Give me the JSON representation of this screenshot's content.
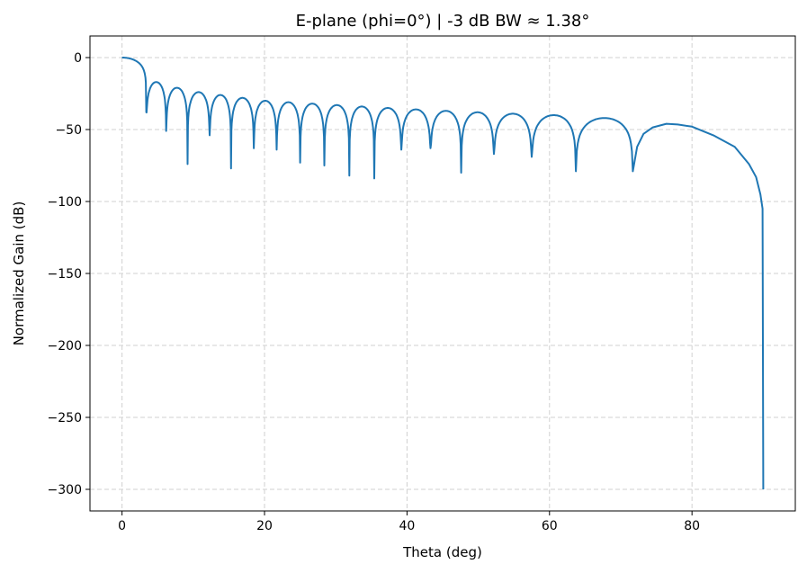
{
  "chart_data": {
    "type": "line",
    "title": "E-plane (phi=0°)  |  -3 dB BW ≈ 1.38°",
    "xlabel": "Theta (deg)",
    "ylabel": "Normalized Gain (dB)",
    "xlim": [
      -4.5,
      94.5
    ],
    "ylim": [
      -315,
      15
    ],
    "xticks": [
      0,
      20,
      40,
      60,
      80
    ],
    "yticks": [
      0,
      -50,
      -100,
      -150,
      -200,
      -250,
      -300
    ],
    "xtick_labels": [
      "0",
      "20",
      "40",
      "60",
      "80"
    ],
    "ytick_labels": [
      "0",
      "−50",
      "−100",
      "−150",
      "−200",
      "−250",
      "−300"
    ],
    "grid": true,
    "line_color": "#1f77b4",
    "main_lobe": {
      "peak": [
        0,
        0
      ]
    },
    "nulls": [
      [
        3.4,
        -38
      ],
      [
        6.2,
        -51
      ],
      [
        9.2,
        -74
      ],
      [
        12.3,
        -54
      ],
      [
        15.3,
        -77
      ],
      [
        18.5,
        -63
      ],
      [
        21.7,
        -64
      ],
      [
        25.0,
        -73
      ],
      [
        28.4,
        -75
      ],
      [
        31.9,
        -82
      ],
      [
        35.4,
        -84
      ],
      [
        39.2,
        -64
      ],
      [
        43.3,
        -63
      ],
      [
        47.6,
        -80
      ],
      [
        52.2,
        -67
      ],
      [
        57.5,
        -69
      ],
      [
        63.7,
        -79
      ],
      [
        71.7,
        -79
      ]
    ],
    "sidelobe_peaks": [
      [
        4.7,
        -17
      ],
      [
        7.6,
        -21
      ],
      [
        10.7,
        -24
      ],
      [
        13.8,
        -26
      ],
      [
        16.9,
        -28
      ],
      [
        20.1,
        -30
      ],
      [
        23.4,
        -31
      ],
      [
        26.7,
        -32
      ],
      [
        30.1,
        -33
      ],
      [
        33.6,
        -34
      ],
      [
        37.3,
        -35
      ],
      [
        41.3,
        -36
      ],
      [
        45.5,
        -37
      ],
      [
        49.9,
        -38
      ],
      [
        54.7,
        -39
      ],
      [
        60.4,
        -40
      ],
      [
        67.5,
        -42
      ]
    ],
    "tail": [
      [
        71.7,
        -79
      ],
      [
        72.3,
        -62
      ],
      [
        73.2,
        -53
      ],
      [
        74.5,
        -48.5
      ],
      [
        76.4,
        -46
      ],
      [
        78,
        -46.5
      ],
      [
        80,
        -48
      ],
      [
        83,
        -54
      ],
      [
        86,
        -62
      ],
      [
        88,
        -74
      ],
      [
        89,
        -83
      ],
      [
        89.6,
        -95
      ],
      [
        89.9,
        -105
      ],
      [
        90,
        -300
      ]
    ]
  }
}
